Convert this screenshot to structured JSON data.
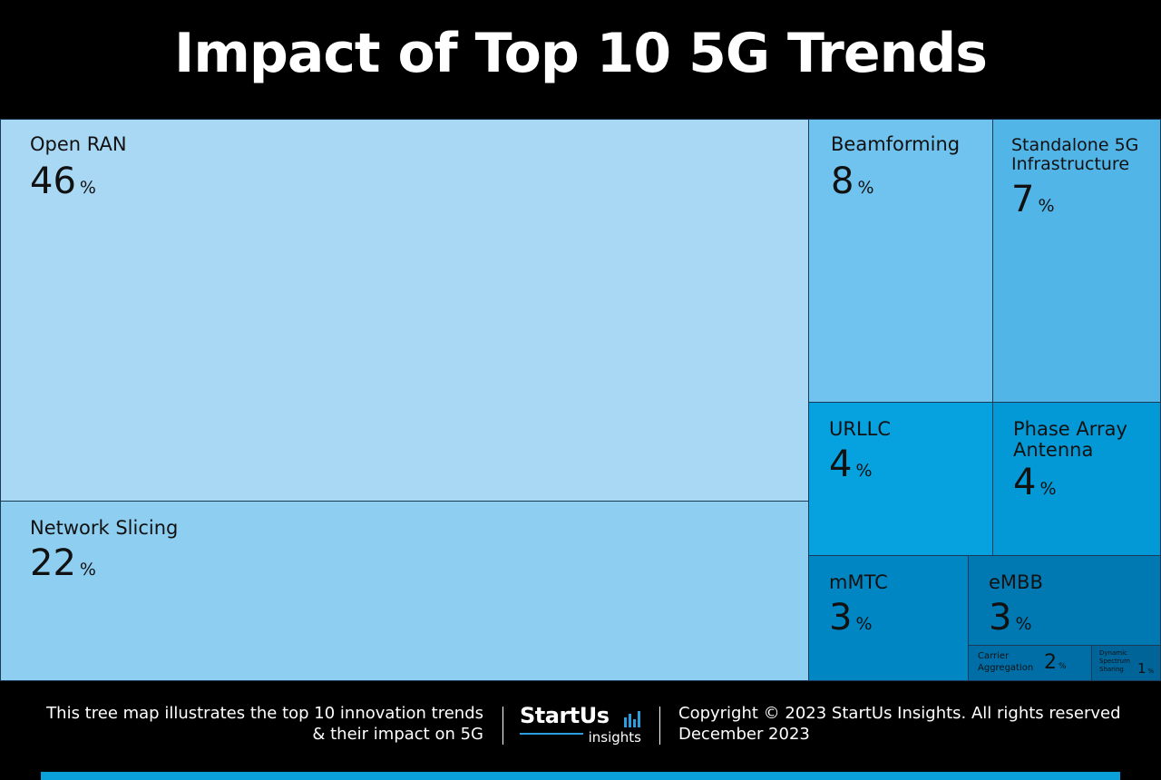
{
  "chart_data": {
    "type": "treemap",
    "title": "Impact of Top 10 5G Trends",
    "unit": "%",
    "items": [
      {
        "label": "Open RAN",
        "value": 46,
        "color": "#a9d8f5"
      },
      {
        "label": "Network Slicing",
        "value": 22,
        "color": "#8ecff1"
      },
      {
        "label": "Beamforming",
        "value": 8,
        "color": "#70c3ee"
      },
      {
        "label": "Standalone 5G Infrastructure",
        "value": 7,
        "color": "#52b5e8"
      },
      {
        "label": "URLLC",
        "value": 4,
        "color": "#06a2df"
      },
      {
        "label": "Phase Array Antenna",
        "value": 4,
        "color": "#0399d6"
      },
      {
        "label": "mMTC",
        "value": 3,
        "color": "#0086c3"
      },
      {
        "label": "eMBB",
        "value": 3,
        "color": "#0079b3"
      },
      {
        "label": "Carrier Aggregation",
        "value": 2,
        "color": "#006ea6"
      },
      {
        "label": "Dynamic Spectrum Sharing",
        "value": 1,
        "color": "#006499"
      }
    ]
  },
  "footer": {
    "description_line1": "This tree map illustrates the top 10 innovation trends",
    "description_line2": "& their impact on 5G",
    "logo_word": "StartUs",
    "logo_sub": "insights",
    "copyright": "Copyright © 2023 StartUs Insights. All rights reserved",
    "date": "December 2023",
    "accent_color": "#0aa0dc"
  }
}
